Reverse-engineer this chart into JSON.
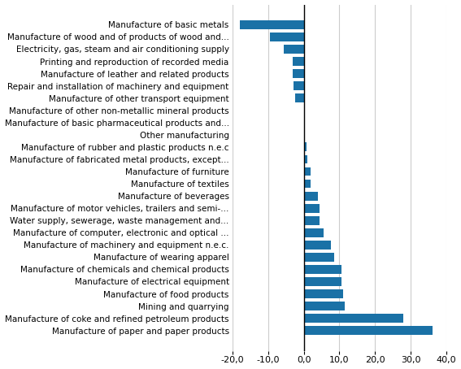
{
  "categories": [
    "Manufacture of paper and paper products",
    "Manufacture of coke and refined petroleum products",
    "Mining and quarrying",
    "Manufacture of food products",
    "Manufacture of electrical equipment",
    "Manufacture of chemicals and chemical products",
    "Manufacture of wearing apparel",
    "Manufacture of machinery and equipment n.e.c.",
    "Manufacture of computer, electronic and optical ...",
    "Water supply, sewerage, waste management and...",
    "Manufacture of motor vehicles, trailers and semi-...",
    "Manufacture of beverages",
    "Manufacture of textiles",
    "Manufacture of furniture",
    "Manufacture of fabricated metal products, except...",
    "Manufacture of rubber and plastic products n.e.c",
    "Other manufacturing",
    "Manufacture of basic pharmaceutical products and...",
    "Manufacture of other non-metallic mineral products",
    "Manufacture of other transport equipment",
    "Repair and installation of machinery and equipment",
    "Manufacture of leather and related products",
    "Printing and reproduction of recorded media",
    "Electricity, gas, steam and air conditioning supply",
    "Manufacture of wood and of products of wood and...",
    "Manufacture of basic metals"
  ],
  "values": [
    36.0,
    28.0,
    11.5,
    11.0,
    10.5,
    10.5,
    8.5,
    7.5,
    5.5,
    4.5,
    4.5,
    4.0,
    2.0,
    1.8,
    1.0,
    0.8,
    0.1,
    0.1,
    0.0,
    -2.5,
    -2.8,
    -3.0,
    -3.2,
    -5.5,
    -9.5,
    -18.0
  ],
  "bar_color": "#1a71a6",
  "xlim": [
    -20,
    40
  ],
  "xticks": [
    -20,
    -10,
    0,
    10,
    20,
    30,
    40
  ],
  "tick_fontsize": 8.0,
  "label_fontsize": 7.5,
  "background_color": "#ffffff",
  "grid_color": "#cccccc"
}
